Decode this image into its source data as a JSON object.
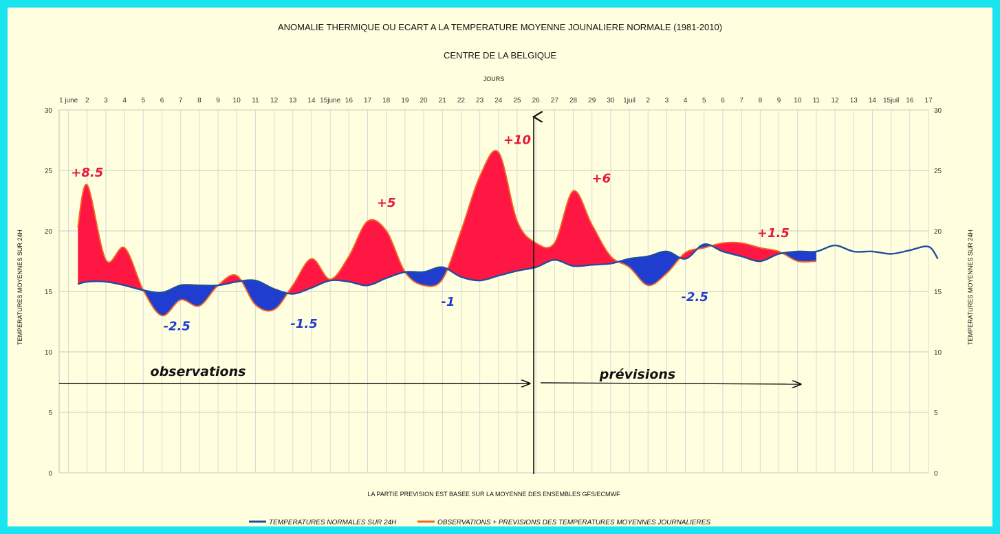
{
  "chart_data": {
    "type": "area",
    "title": "ANOMALIE THERMIQUE OU ECART A LA TEMPERATURE MOYENNE JOUNALIERE NORMALE (1981-2010)",
    "subtitle": "CENTRE DE LA BELGIQUE",
    "xlabel": "JOURS",
    "ylabel_left": "TEMPERATURES MOYENNES SUR 24H",
    "ylabel_right": "TEMPERATURES MOYENNES SUR 24H",
    "note": "LA PARTIE PREVISION EST BASEE SUR LA MOYENNE DES ENSEMBLES GFS/ECMWF",
    "ylim": [
      0,
      30
    ],
    "yticks": [
      "0",
      "5",
      "10",
      "15",
      "20",
      "25",
      "30"
    ],
    "grid": true,
    "legend_position": "bottom",
    "categories": [
      "1 june",
      "2",
      "3",
      "4",
      "5",
      "6",
      "7",
      "8",
      "9",
      "10",
      "11",
      "12",
      "13",
      "14",
      "15june",
      "16",
      "17",
      "18",
      "19",
      "20",
      "21",
      "22",
      "23",
      "24",
      "25",
      "26",
      "27",
      "28",
      "29",
      "30",
      "1juil",
      "2",
      "3",
      "4",
      "5",
      "6",
      "7",
      "8",
      "9",
      "10",
      "11",
      "12",
      "13",
      "14",
      "15juil",
      "16",
      "17"
    ],
    "series": [
      {
        "name": "TEMPERATURES NORMALES SUR 24H",
        "color": "#1f4e9c",
        "x": [
          0.5,
          1,
          2,
          3,
          4,
          5,
          6,
          7,
          8,
          9,
          10,
          11,
          12,
          13,
          14,
          15,
          16,
          17,
          18,
          19,
          20,
          21,
          22,
          23,
          24,
          25,
          26,
          27,
          28,
          29,
          30,
          31,
          32,
          33,
          34,
          35,
          36,
          37,
          38,
          39,
          40,
          41,
          42,
          43,
          44,
          45,
          46,
          46.5
        ],
        "values": [
          15.6,
          15.8,
          15.8,
          15.5,
          15.1,
          14.9,
          15.5,
          15.5,
          15.5,
          15.8,
          15.9,
          15.2,
          14.8,
          15.3,
          15.9,
          15.8,
          15.5,
          16.1,
          16.6,
          16.6,
          17.0,
          16.2,
          15.9,
          16.3,
          16.7,
          17.0,
          17.6,
          17.1,
          17.2,
          17.3,
          17.7,
          17.9,
          18.3,
          17.7,
          18.9,
          18.3,
          17.9,
          17.5,
          18.1,
          18.3,
          18.3,
          18.8,
          18.3,
          18.3,
          18.1,
          18.4,
          18.7,
          17.7
        ]
      },
      {
        "name": "OBSERVATIONS + PREVISIONS DES TEMPERATURES MOYENNES JOURNALIERES",
        "color": "#f26522",
        "x": [
          0.5,
          1,
          2,
          3,
          4,
          5,
          6,
          7,
          8,
          9,
          10,
          11,
          12,
          13,
          14,
          15,
          16,
          17,
          18,
          19,
          20,
          21,
          22,
          23,
          24,
          25,
          26,
          27,
          28,
          29,
          30,
          31,
          32,
          33,
          34,
          35,
          36,
          37,
          38,
          39,
          40
        ],
        "values": [
          20.3,
          23.8,
          17.6,
          18.6,
          15.1,
          13.0,
          14.3,
          13.8,
          15.5,
          16.3,
          13.9,
          13.5,
          15.5,
          17.7,
          16.0,
          17.9,
          20.8,
          20.0,
          16.6,
          15.5,
          16.0,
          20.0,
          24.5,
          26.5,
          20.8,
          19.0,
          19.0,
          23.3,
          20.5,
          17.9,
          17.0,
          15.5,
          16.5,
          18.2,
          18.6,
          19.0,
          19.0,
          18.6,
          18.3,
          17.5,
          17.5
        ]
      }
    ],
    "forecast_start_x": 26,
    "annotations": [
      {
        "text": "+8.5",
        "color": "#e8183a",
        "x": 1,
        "y": 24.5
      },
      {
        "text": "-2.5",
        "color": "#1f3ed0",
        "x": 5.8,
        "y": 11.8
      },
      {
        "text": "-1.5",
        "color": "#1f3ed0",
        "x": 12.6,
        "y": 12.0
      },
      {
        "text": "+5",
        "color": "#e8183a",
        "x": 17,
        "y": 22.0
      },
      {
        "text": "-1",
        "color": "#1f3ed0",
        "x": 20.3,
        "y": 13.8
      },
      {
        "text": "+10",
        "color": "#e8183a",
        "x": 24,
        "y": 27.2
      },
      {
        "text": "+6",
        "color": "#e8183a",
        "x": 28.5,
        "y": 24.0
      },
      {
        "text": "-2.5",
        "color": "#1f3ed0",
        "x": 33.5,
        "y": 14.2
      },
      {
        "text": "+1.5",
        "color": "#e8183a",
        "x": 37.7,
        "y": 19.5
      }
    ],
    "labels": {
      "observations": "observations",
      "previsions": "prévisions"
    },
    "colors": {
      "above_normal_fill": "#ff1744",
      "below_normal_fill": "#1f3ed0",
      "normal_line": "#1f4e9c",
      "observed_line": "#f26522",
      "frame": "#1ae4f0",
      "background": "#ffffe0"
    }
  }
}
